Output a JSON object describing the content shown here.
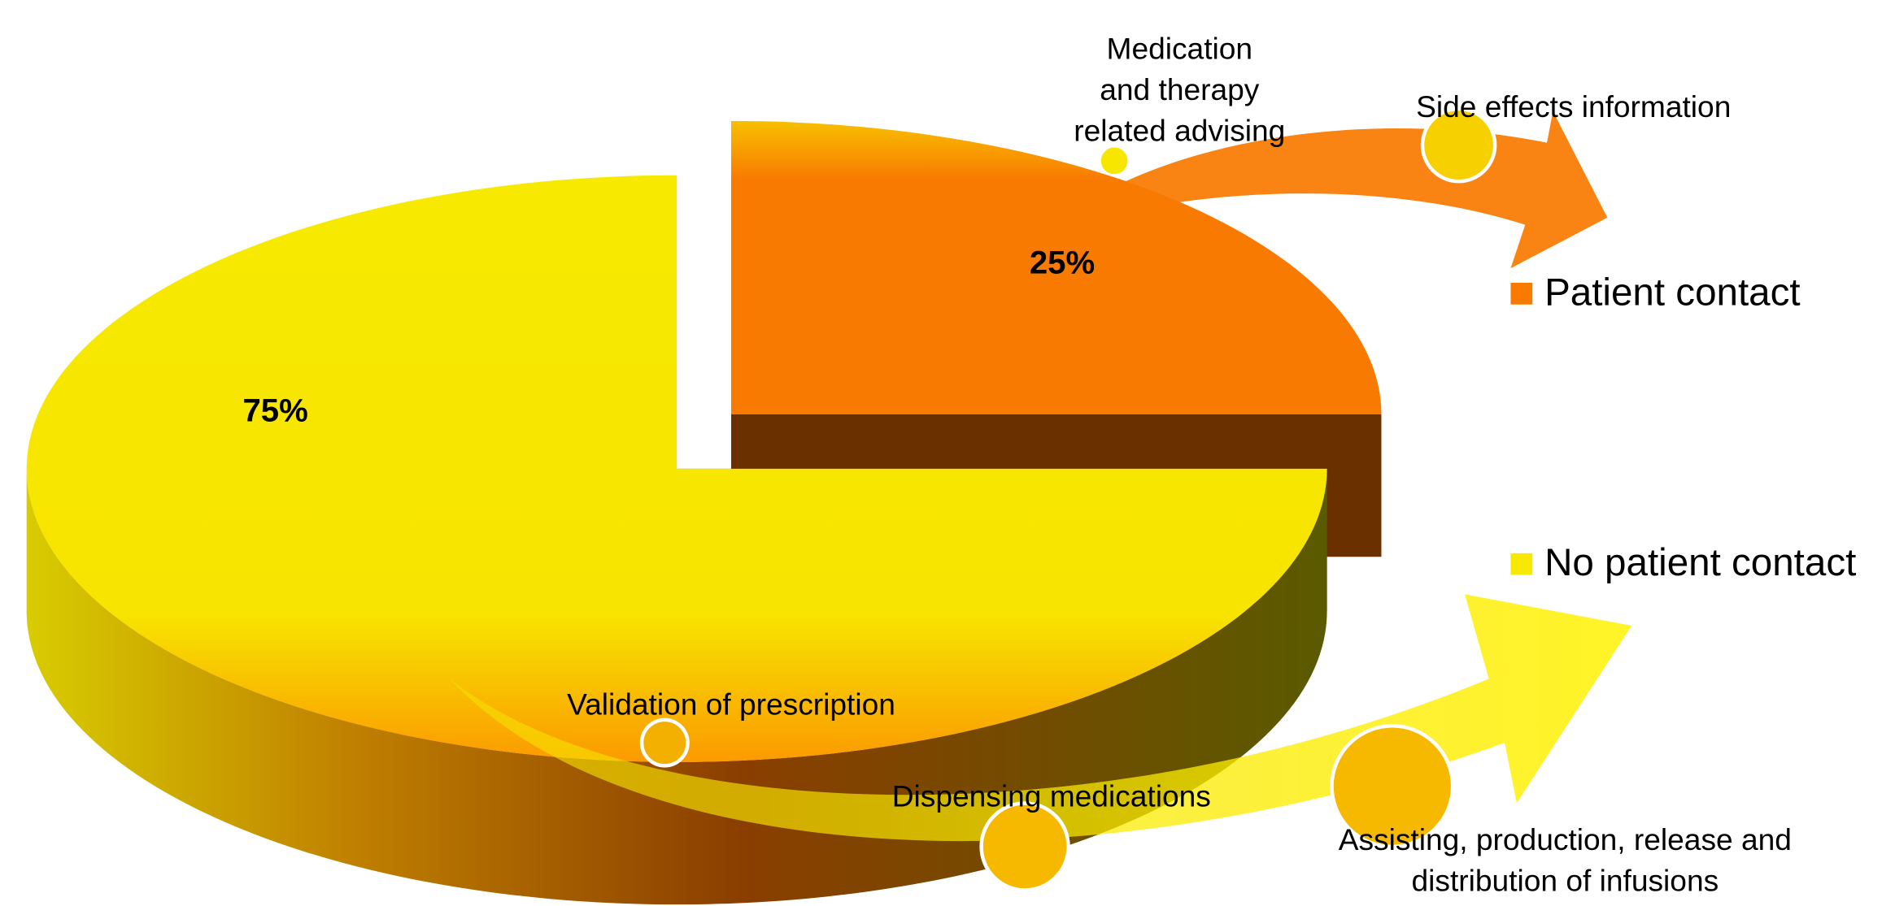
{
  "chart_data": {
    "type": "pie",
    "categories": [
      "Patient contact",
      "No patient contact"
    ],
    "values": [
      25,
      75
    ],
    "value_labels": [
      "25%",
      "75%"
    ],
    "colors": [
      "#f97a00",
      "#f7ea00"
    ],
    "legend": "right",
    "annotations": [
      {
        "lines": [
          "Medication",
          "and therapy",
          "related advising"
        ]
      },
      {
        "lines": [
          "Side effects information"
        ]
      },
      {
        "lines": [
          "Validation of prescription"
        ]
      },
      {
        "lines": [
          "Dispensing medications"
        ]
      },
      {
        "lines": [
          "Assisting, production, release and",
          "distribution of infusions"
        ]
      }
    ]
  }
}
